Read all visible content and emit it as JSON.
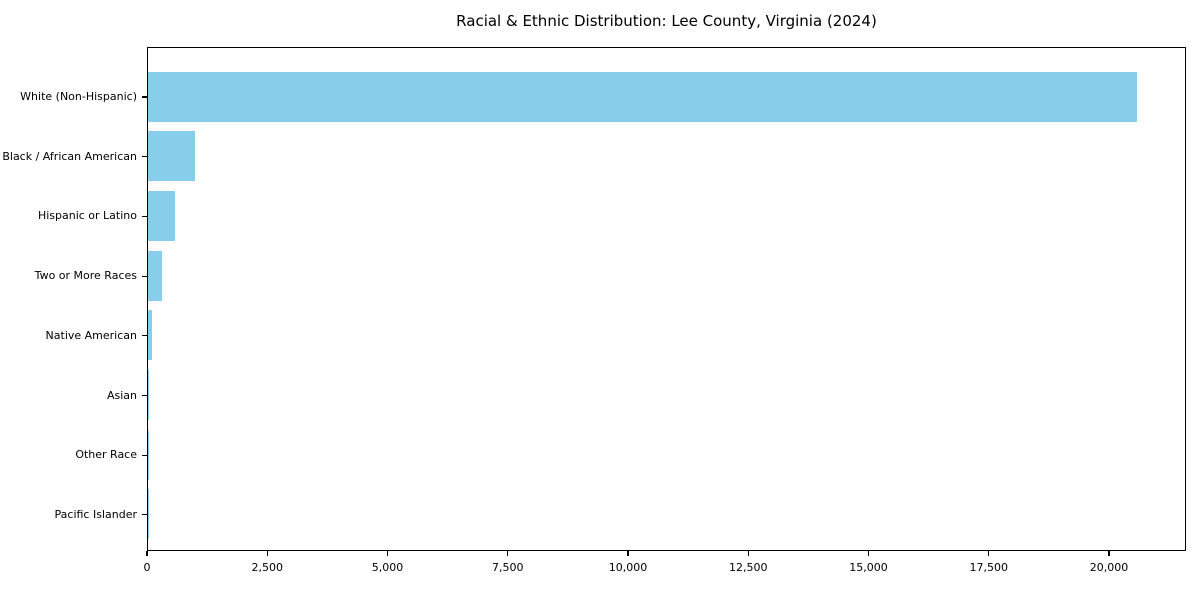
{
  "chart_data": {
    "type": "bar",
    "orientation": "horizontal",
    "title": "Racial & Ethnic Distribution: Lee County, Virginia (2024)",
    "categories": [
      "White (Non-Hispanic)",
      "Black / African American",
      "Hispanic or Latino",
      "Two or More Races",
      "Native American",
      "Asian",
      "Other Race",
      "Pacific Islander"
    ],
    "values": [
      20560,
      975,
      565,
      290,
      85,
      30,
      25,
      5
    ],
    "xlabel": "",
    "ylabel": "",
    "xlim": [
      0,
      21600
    ],
    "xticks": [
      0,
      2500,
      5000,
      7500,
      10000,
      12500,
      15000,
      17500,
      20000
    ],
    "xtick_labels": [
      "0",
      "2,500",
      "5,000",
      "7,500",
      "10,000",
      "12,500",
      "15,000",
      "17,500",
      "20,000"
    ],
    "bar_color": "#87CEEB",
    "axis_color": "#000000",
    "background_color": "#ffffff",
    "grid": false,
    "legend": null
  }
}
